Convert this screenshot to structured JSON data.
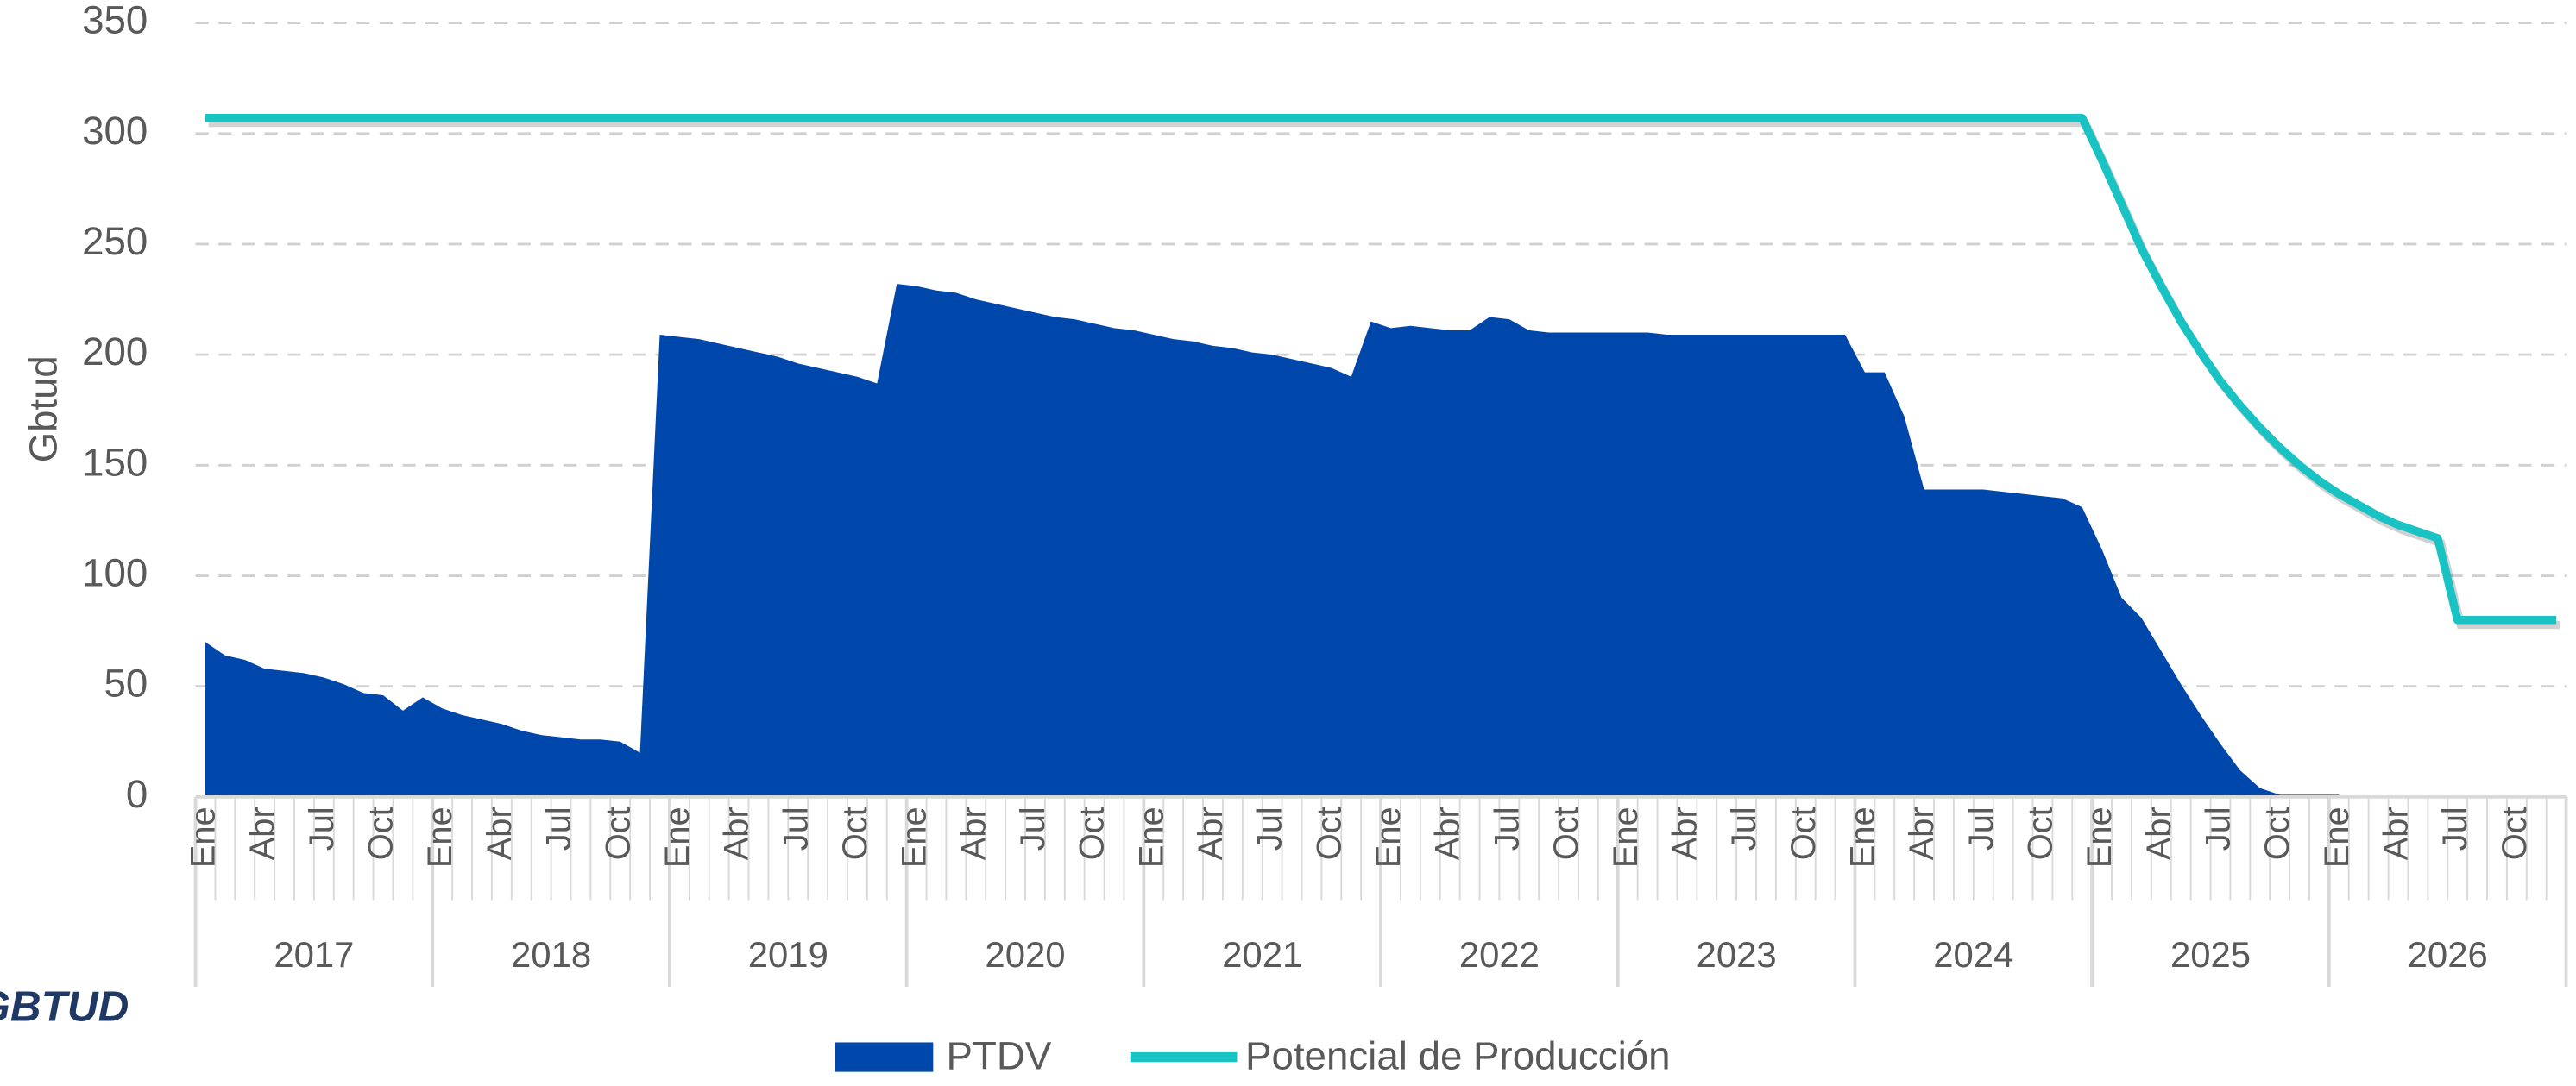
{
  "chart_data": {
    "type": "area-line",
    "y_label": "Gbtud",
    "annotation": "GBTUD",
    "years": [
      "2017",
      "2018",
      "2019",
      "2020",
      "2021",
      "2022",
      "2023",
      "2024",
      "2025",
      "2026"
    ],
    "categories": [
      "Ene",
      null,
      null,
      "Abr",
      null,
      null,
      "Jul",
      null,
      null,
      "Oct",
      null,
      null,
      "Ene",
      null,
      null,
      "Abr",
      null,
      null,
      "Jul",
      null,
      null,
      "Oct",
      null,
      null,
      "Ene",
      null,
      null,
      "Abr",
      null,
      null,
      "Jul",
      null,
      null,
      "Oct",
      null,
      null,
      "Ene",
      null,
      null,
      "Abr",
      null,
      null,
      "Jul",
      null,
      null,
      "Oct",
      null,
      null,
      "Ene",
      null,
      null,
      "Abr",
      null,
      null,
      "Jul",
      null,
      null,
      "Oct",
      null,
      null,
      "Ene",
      null,
      null,
      "Abr",
      null,
      null,
      "Jul",
      null,
      null,
      "Oct",
      null,
      null,
      "Ene",
      null,
      null,
      "Abr",
      null,
      null,
      "Jul",
      null,
      null,
      "Oct",
      null,
      null,
      "Ene",
      null,
      null,
      "Abr",
      null,
      null,
      "Jul",
      null,
      null,
      "Oct",
      null,
      null,
      "Ene",
      null,
      null,
      "Abr",
      null,
      null,
      "Jul",
      null,
      null,
      "Oct",
      null,
      null,
      "Ene",
      null,
      null,
      "Abr",
      null,
      null,
      "Jul",
      null,
      null,
      "Oct",
      null,
      null
    ],
    "series": [
      {
        "name": "PTDV",
        "kind": "area",
        "color": "#0047ab",
        "values": [
          70,
          64,
          62,
          58,
          57,
          56,
          54,
          51,
          47,
          46,
          39,
          45,
          40,
          37,
          35,
          33,
          30,
          28,
          27,
          26,
          26,
          25,
          20,
          209,
          208,
          207,
          205,
          203,
          201,
          199,
          196,
          194,
          192,
          190,
          187,
          232,
          231,
          229,
          228,
          225,
          223,
          221,
          219,
          217,
          216,
          214,
          212,
          211,
          209,
          207,
          206,
          204,
          203,
          201,
          200,
          198,
          196,
          194,
          190,
          215,
          212,
          213,
          212,
          211,
          211,
          217,
          216,
          211,
          210,
          210,
          210,
          210,
          210,
          210,
          209,
          209,
          209,
          209,
          209,
          209,
          209,
          209,
          209,
          209,
          192,
          192,
          172,
          139,
          139,
          139,
          139,
          138,
          137,
          136,
          135,
          131,
          112,
          90,
          81,
          66,
          51,
          37,
          24,
          12,
          4,
          1,
          1,
          1,
          1,
          null,
          null,
          null,
          null,
          null,
          null,
          null,
          null,
          null,
          null,
          null
        ]
      },
      {
        "name": "Potencial de Producción",
        "kind": "line",
        "color": "#19c3c3",
        "values": [
          307,
          307,
          307,
          307,
          307,
          307,
          307,
          307,
          307,
          307,
          307,
          307,
          307,
          307,
          307,
          307,
          307,
          307,
          307,
          307,
          307,
          307,
          307,
          307,
          307,
          307,
          307,
          307,
          307,
          307,
          307,
          307,
          307,
          307,
          307,
          307,
          307,
          307,
          307,
          307,
          307,
          307,
          307,
          307,
          307,
          307,
          307,
          307,
          307,
          307,
          307,
          307,
          307,
          307,
          307,
          307,
          307,
          307,
          307,
          307,
          307,
          307,
          307,
          307,
          307,
          307,
          307,
          307,
          307,
          307,
          307,
          307,
          307,
          307,
          307,
          307,
          307,
          307,
          307,
          307,
          307,
          307,
          307,
          307,
          307,
          307,
          307,
          307,
          307,
          307,
          307,
          307,
          307,
          307,
          307,
          307,
          288,
          268,
          248,
          231,
          215,
          201,
          188,
          177,
          167,
          158,
          150,
          143,
          137,
          132,
          127,
          123,
          120,
          117,
          80,
          80,
          80,
          80,
          80,
          80
        ]
      }
    ],
    "ylim": [
      0,
      350
    ],
    "yticks": [
      0,
      50,
      100,
      150,
      200,
      250,
      300,
      350
    ],
    "grid": true,
    "legend": "bottom"
  }
}
